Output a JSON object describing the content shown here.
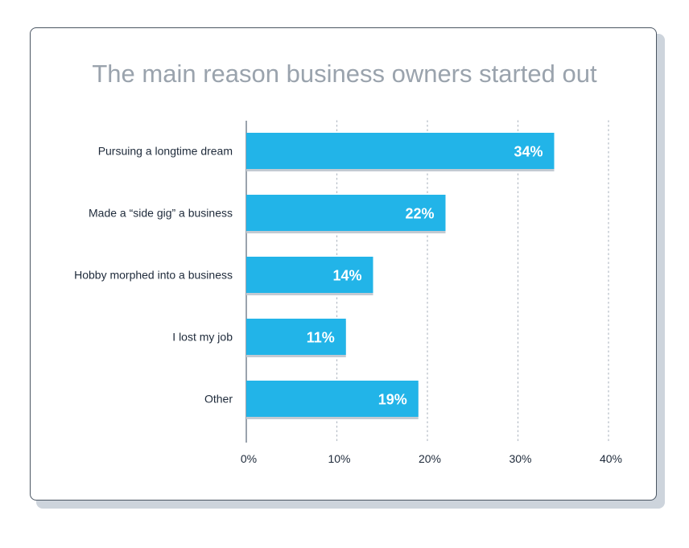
{
  "chart_data": {
    "type": "bar",
    "orientation": "horizontal",
    "title": "The main reason business owners started out",
    "categories": [
      "Pursuing a longtime dream",
      "Made a “side gig” a business",
      "Hobby morphed into a business",
      "I lost my job",
      "Other"
    ],
    "values": [
      34,
      22,
      14,
      11,
      19
    ],
    "value_labels": [
      "34%",
      "22%",
      "14%",
      "11%",
      "19%"
    ],
    "xlim": [
      0,
      40
    ],
    "x_ticks": [
      0,
      10,
      20,
      30,
      40
    ],
    "x_tick_labels": [
      "0%",
      "10%",
      "20%",
      "30%",
      "40%"
    ],
    "grid": "vertical dotted",
    "colors": {
      "bar": "#22b4e8",
      "bar_shadow": "#c3cad2",
      "bar_label": "#ffffff",
      "title": "#9aa3ad",
      "text": "#1e2a3a",
      "axis": "#9aa3ad",
      "grid": "#b8bfc8"
    }
  }
}
